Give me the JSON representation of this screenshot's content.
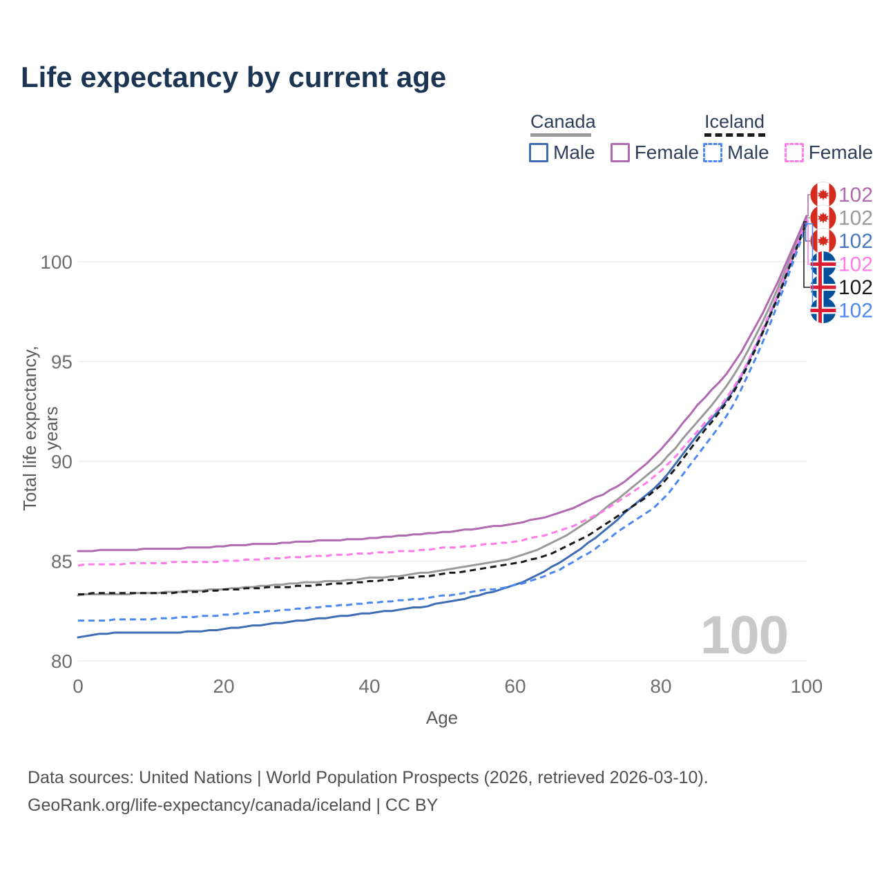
{
  "title": "Life expectancy by current age",
  "legend": {
    "groups": [
      {
        "country": "Canada",
        "style": "solid",
        "underline_color": "#9a9a9a",
        "items": [
          {
            "label": "Male",
            "color": "#3f6db5",
            "dashed": false
          },
          {
            "label": "Female",
            "color": "#b06ab0",
            "dashed": false
          }
        ]
      },
      {
        "country": "Iceland",
        "style": "dashed",
        "underline_color": "#1a1a1a",
        "items": [
          {
            "label": "Male",
            "color": "#4d88f0",
            "dashed": true
          },
          {
            "label": "Female",
            "color": "#ff7ce8",
            "dashed": true
          }
        ]
      }
    ]
  },
  "chart_data": {
    "type": "line",
    "title": "Life expectancy by current age",
    "xlabel": "Age",
    "ylabel": "Total life expectancy, years",
    "x_ticks": [
      0,
      20,
      40,
      60,
      80,
      100
    ],
    "y_ticks": [
      80,
      85,
      90,
      95,
      100
    ],
    "xlim": [
      0,
      100
    ],
    "ylim": [
      79.5,
      102.8
    ],
    "grid": "horizontal",
    "ages": [
      0,
      5,
      10,
      15,
      20,
      25,
      30,
      35,
      40,
      45,
      50,
      55,
      60,
      65,
      70,
      75,
      80,
      85,
      90,
      95,
      100
    ],
    "series": [
      {
        "name": "Canada Female",
        "country": "Canada",
        "color": "#b06ab0",
        "dash": false,
        "values": [
          85.5,
          85.55,
          85.6,
          85.65,
          85.75,
          85.85,
          85.95,
          86.05,
          86.15,
          86.3,
          86.45,
          86.65,
          86.9,
          87.3,
          88.0,
          89.0,
          90.6,
          92.8,
          94.9,
          98.2,
          102.3
        ],
        "end_label": "102"
      },
      {
        "name": "Canada Both sexes",
        "country": "Canada",
        "color": "#9a9a9a",
        "dash": false,
        "values": [
          83.3,
          83.35,
          83.4,
          83.5,
          83.6,
          83.75,
          83.9,
          84.0,
          84.15,
          84.3,
          84.55,
          84.85,
          85.2,
          85.9,
          87.0,
          88.4,
          89.9,
          92.0,
          94.3,
          97.8,
          102.2
        ],
        "end_label": "102"
      },
      {
        "name": "Canada Male",
        "country": "Canada",
        "color": "#3f6db5",
        "dash": false,
        "values": [
          81.2,
          81.4,
          81.4,
          81.45,
          81.6,
          81.8,
          82.0,
          82.2,
          82.4,
          82.6,
          82.9,
          83.3,
          83.8,
          84.7,
          85.9,
          87.4,
          89.0,
          91.3,
          93.6,
          97.4,
          102.0
        ],
        "end_label": "102"
      },
      {
        "name": "Iceland Female",
        "country": "Iceland",
        "color": "#ff7ce8",
        "dash": true,
        "values": [
          84.8,
          84.85,
          84.9,
          84.95,
          85.0,
          85.1,
          85.2,
          85.3,
          85.4,
          85.5,
          85.65,
          85.8,
          86.0,
          86.4,
          87.1,
          88.2,
          89.5,
          91.5,
          93.7,
          97.5,
          102.1
        ],
        "end_label": "102"
      },
      {
        "name": "Iceland Both sexes",
        "country": "Iceland",
        "color": "#1a1a1a",
        "dash": true,
        "values": [
          83.35,
          83.4,
          83.4,
          83.45,
          83.55,
          83.65,
          83.75,
          83.85,
          84.0,
          84.15,
          84.35,
          84.6,
          84.9,
          85.4,
          86.3,
          87.5,
          88.8,
          91.1,
          93.5,
          97.3,
          102.0
        ],
        "end_label": "102"
      },
      {
        "name": "Iceland Male",
        "country": "Iceland",
        "color": "#4d88f0",
        "dash": true,
        "values": [
          82.0,
          82.05,
          82.1,
          82.2,
          82.3,
          82.45,
          82.6,
          82.75,
          82.9,
          83.05,
          83.25,
          83.5,
          83.8,
          84.4,
          85.4,
          86.7,
          88.0,
          90.3,
          92.9,
          96.9,
          101.9
        ],
        "end_label": "102"
      }
    ]
  },
  "endpoint_labels": [
    {
      "country": "Canada",
      "value": "102",
      "color": "#b06ab0"
    },
    {
      "country": "Canada",
      "value": "102",
      "color": "#9a9a9a"
    },
    {
      "country": "Canada",
      "value": "102",
      "color": "#4a77bb"
    },
    {
      "country": "Iceland",
      "value": "102",
      "color": "#ff7ce8"
    },
    {
      "country": "Iceland",
      "value": "102",
      "color": "#1a1a1a"
    },
    {
      "country": "Iceland",
      "value": "102",
      "color": "#4d88f0"
    }
  ],
  "watermark": "100",
  "flag_colors": {
    "canada_red": "#d52b1e",
    "iceland_blue": "#02529b",
    "iceland_red": "#dc1e35"
  },
  "grid_color": "#ececec",
  "tick_color": "#6e6e6e",
  "source": {
    "line1": "Data sources: United Nations | World Population Prospects (2026, retrieved 2026-03-10).",
    "line2": "GeoRank.org/life-expectancy/canada/iceland | CC BY"
  }
}
